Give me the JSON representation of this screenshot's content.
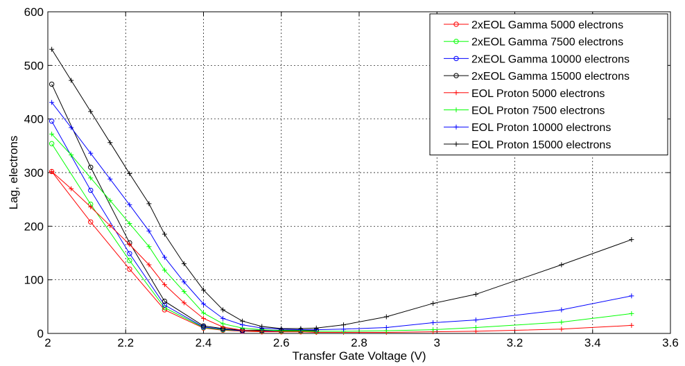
{
  "chart_data": {
    "type": "line",
    "title": "",
    "xlabel": "Transfer Gate Voltage (V)",
    "ylabel": "Lag, electrons",
    "xlim": [
      2,
      3.6
    ],
    "ylim": [
      0,
      600
    ],
    "xticks": [
      2,
      2.2,
      2.4,
      2.6,
      2.8,
      3,
      3.2,
      3.4,
      3.6
    ],
    "yticks": [
      0,
      100,
      200,
      300,
      400,
      500,
      600
    ],
    "xtick_labels": [
      "2",
      "2.2",
      "2.4",
      "2.6",
      "2.8",
      "3",
      "3.2",
      "3.4",
      "3.6"
    ],
    "ytick_labels": [
      "0",
      "100",
      "200",
      "300",
      "400",
      "500",
      "600"
    ],
    "grid": true,
    "legend_position": "top-right",
    "series": [
      {
        "name": "2xEOL Gamma 5000 electrons",
        "color": "#ff0000",
        "marker": "circle",
        "x": [
          2.01,
          2.11,
          2.21,
          2.3,
          2.4,
          2.45,
          2.5,
          2.55,
          2.6,
          2.65,
          2.69
        ],
        "y": [
          302,
          208,
          120,
          44,
          10,
          6,
          4,
          3,
          3,
          3,
          3
        ]
      },
      {
        "name": "2xEOL Gamma 7500 electrons",
        "color": "#00ff00",
        "marker": "circle",
        "x": [
          2.01,
          2.11,
          2.21,
          2.3,
          2.4,
          2.45,
          2.5,
          2.55,
          2.6,
          2.65,
          2.69
        ],
        "y": [
          354,
          241,
          136,
          48,
          11,
          7,
          5,
          4,
          4,
          4,
          4
        ]
      },
      {
        "name": "2xEOL Gamma 10000 electrons",
        "color": "#0000ff",
        "marker": "circle",
        "x": [
          2.01,
          2.11,
          2.21,
          2.3,
          2.4,
          2.45,
          2.5,
          2.55,
          2.6,
          2.65,
          2.69
        ],
        "y": [
          396,
          267,
          149,
          53,
          12,
          8,
          5,
          5,
          5,
          5,
          5
        ]
      },
      {
        "name": "2xEOL Gamma 15000 electrons",
        "color": "#000000",
        "marker": "circle",
        "x": [
          2.01,
          2.11,
          2.21,
          2.3,
          2.4,
          2.45,
          2.5,
          2.55,
          2.6,
          2.65,
          2.69
        ],
        "y": [
          465,
          310,
          169,
          60,
          14,
          9,
          6,
          6,
          6,
          6,
          6
        ]
      },
      {
        "name": "EOL Proton 5000 electrons",
        "color": "#ff0000",
        "marker": "plus",
        "x": [
          2.01,
          2.06,
          2.11,
          2.16,
          2.21,
          2.26,
          2.3,
          2.35,
          2.4,
          2.45,
          2.5,
          2.55,
          2.6,
          2.65,
          2.69,
          2.76,
          2.87,
          2.99,
          3.1,
          3.32,
          3.5
        ],
        "y": [
          302,
          270,
          236,
          201,
          166,
          128,
          91,
          57,
          28,
          12,
          6,
          4,
          3,
          3,
          2,
          2,
          2,
          3,
          4,
          8,
          15
        ]
      },
      {
        "name": "EOL Proton 7500 electrons",
        "color": "#00ff00",
        "marker": "plus",
        "x": [
          2.01,
          2.06,
          2.11,
          2.16,
          2.21,
          2.26,
          2.3,
          2.35,
          2.4,
          2.45,
          2.5,
          2.55,
          2.6,
          2.65,
          2.69,
          2.76,
          2.87,
          2.99,
          3.1,
          3.32,
          3.5
        ],
        "y": [
          372,
          333,
          290,
          248,
          205,
          162,
          118,
          78,
          38,
          18,
          10,
          7,
          5,
          5,
          4,
          4,
          5,
          7,
          11,
          21,
          37
        ]
      },
      {
        "name": "EOL Proton 10000 electrons",
        "color": "#0000ff",
        "marker": "plus",
        "x": [
          2.01,
          2.06,
          2.11,
          2.16,
          2.21,
          2.26,
          2.3,
          2.35,
          2.4,
          2.45,
          2.5,
          2.55,
          2.6,
          2.65,
          2.69,
          2.76,
          2.87,
          2.99,
          3.1,
          3.32,
          3.5
        ],
        "y": [
          431,
          384,
          336,
          288,
          240,
          191,
          142,
          96,
          55,
          28,
          16,
          10,
          8,
          7,
          7,
          8,
          11,
          20,
          25,
          44,
          70
        ]
      },
      {
        "name": "EOL Proton 15000 electrons",
        "color": "#000000",
        "marker": "plus",
        "x": [
          2.01,
          2.06,
          2.11,
          2.16,
          2.21,
          2.26,
          2.3,
          2.35,
          2.4,
          2.45,
          2.5,
          2.55,
          2.6,
          2.65,
          2.69,
          2.76,
          2.87,
          2.99,
          3.1,
          3.32,
          3.5
        ],
        "y": [
          530,
          472,
          414,
          356,
          298,
          242,
          185,
          130,
          81,
          44,
          23,
          13,
          9,
          9,
          10,
          16,
          31,
          56,
          73,
          128,
          175
        ]
      }
    ]
  }
}
